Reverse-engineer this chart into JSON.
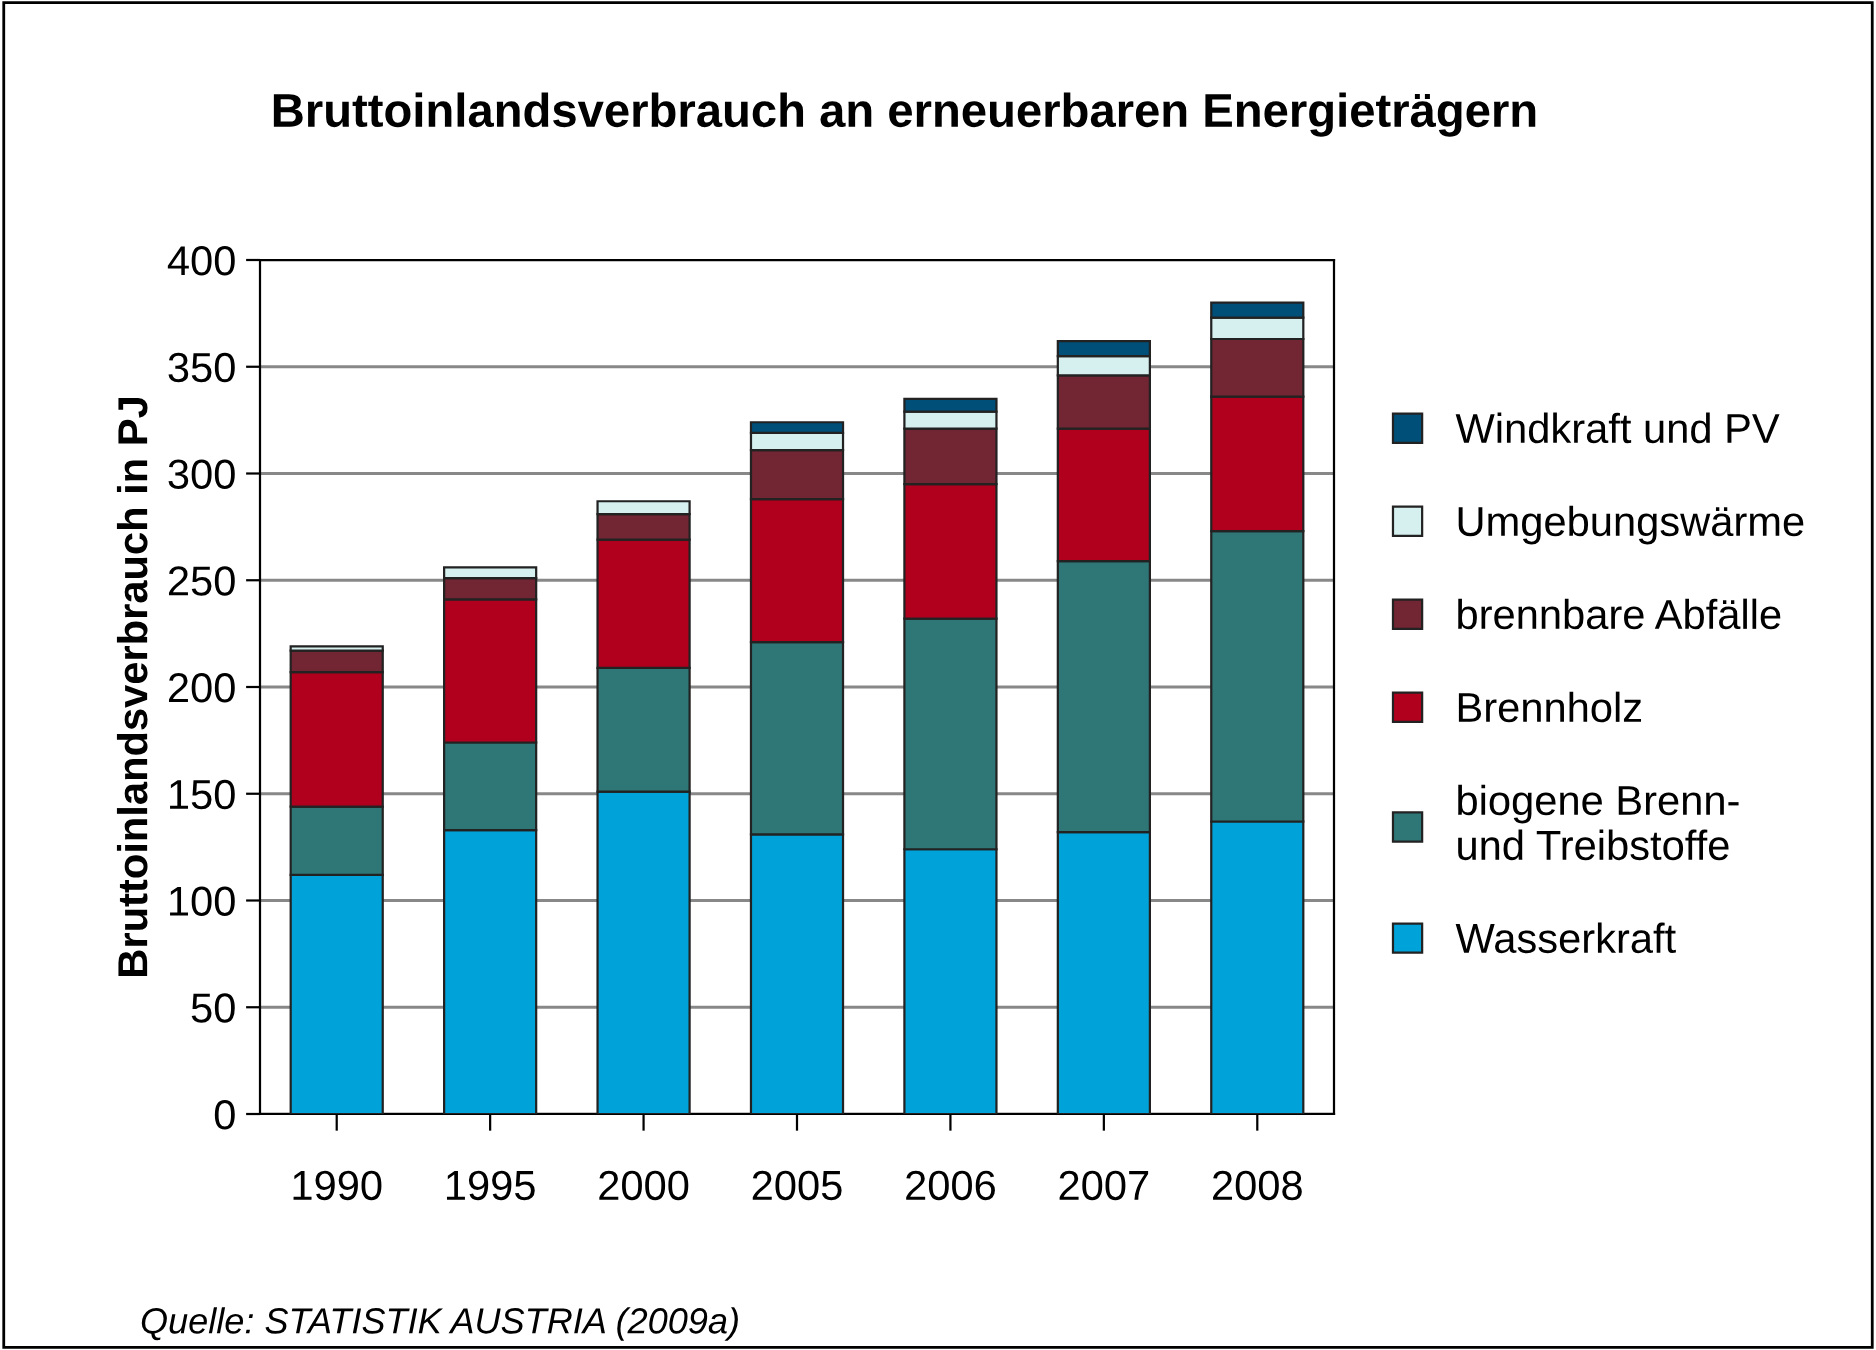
{
  "chart_data": {
    "type": "bar",
    "stacked": true,
    "title": "Bruttoinlandsverbrauch an erneuerbaren Energieträgern",
    "ylabel": "Bruttoinlandsverbrauch in PJ",
    "categories": [
      "1990",
      "1995",
      "2000",
      "2005",
      "2006",
      "2007",
      "2008"
    ],
    "series": [
      {
        "name": "Wasserkraft",
        "color": "#00a3d9",
        "values": [
          112,
          133,
          151,
          131,
          124,
          132,
          137
        ]
      },
      {
        "name": "biogene Brenn-\nund Treibstoffe",
        "color": "#2f7776",
        "values": [
          32,
          41,
          58,
          90,
          108,
          127,
          136
        ]
      },
      {
        "name": "Brennholz",
        "color": "#b0001e",
        "values": [
          63,
          67,
          60,
          67,
          63,
          62,
          63
        ]
      },
      {
        "name": "brennbare Abfälle",
        "color": "#722533",
        "values": [
          10,
          10,
          12,
          23,
          26,
          25,
          27
        ]
      },
      {
        "name": "Umgebungswärme",
        "color": "#d6efef",
        "values": [
          2,
          5,
          6,
          8,
          8,
          9,
          10
        ]
      },
      {
        "name": "Windkraft und PV",
        "color": "#004f79",
        "values": [
          null,
          null,
          null,
          5,
          6,
          7,
          7
        ]
      }
    ],
    "ylim": [
      0,
      400
    ],
    "yticks": [
      0,
      50,
      100,
      150,
      200,
      250,
      300,
      350,
      400
    ],
    "grid": "y",
    "legend": "right",
    "annotations": [
      "Quelle: STATISTIK AUSTRIA (2009a)"
    ]
  }
}
